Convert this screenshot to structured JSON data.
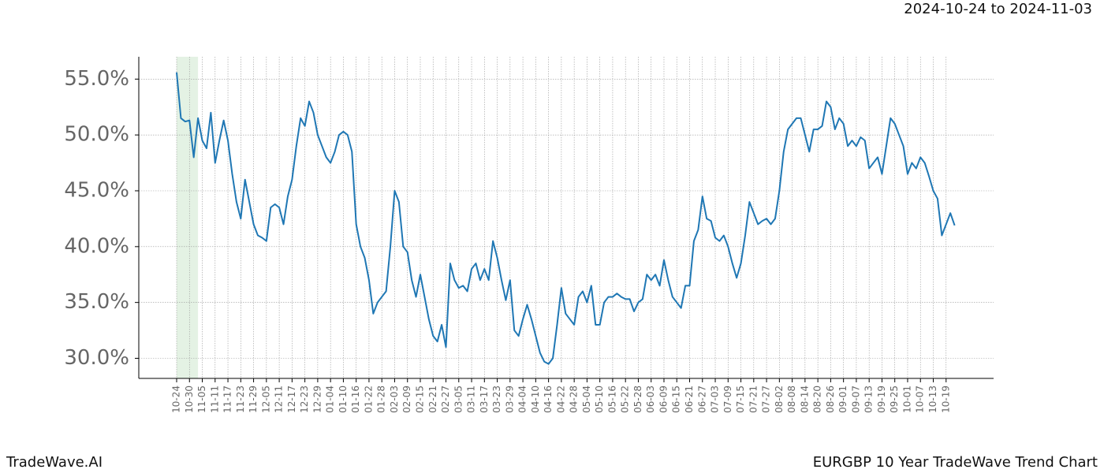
{
  "chart_data": {
    "type": "line",
    "title": "EURGBP 10 Year TradeWave Trend Chart",
    "subtitle": "2024-10-24 to 2024-11-03",
    "brand": "TradeWave.AI",
    "categories": [
      "10-24",
      null,
      null,
      "10-30",
      null,
      null,
      "11-05",
      null,
      null,
      "11-11",
      null,
      null,
      "11-17",
      null,
      null,
      "11-23",
      null,
      null,
      "11-29",
      null,
      null,
      "12-05",
      null,
      null,
      "12-11",
      null,
      null,
      "12-17",
      null,
      null,
      "12-23",
      null,
      null,
      "12-29",
      null,
      null,
      "01-04",
      null,
      null,
      "01-10",
      null,
      null,
      "01-16",
      null,
      null,
      "01-22",
      null,
      null,
      "01-28",
      null,
      null,
      "02-03",
      null,
      null,
      "02-09",
      null,
      null,
      "02-15",
      null,
      null,
      "02-21",
      null,
      null,
      "02-27",
      null,
      null,
      "03-05",
      null,
      null,
      "03-11",
      null,
      null,
      "03-17",
      null,
      null,
      "03-23",
      null,
      null,
      "03-29",
      null,
      null,
      "04-04",
      null,
      null,
      "04-10",
      null,
      null,
      "04-16",
      null,
      null,
      "04-22",
      null,
      null,
      "04-28",
      null,
      null,
      "05-04",
      null,
      null,
      "05-10",
      null,
      null,
      "05-16",
      null,
      null,
      "05-22",
      null,
      null,
      "05-28",
      null,
      null,
      "06-03",
      null,
      null,
      "06-09",
      null,
      null,
      "06-15",
      null,
      null,
      "06-21",
      null,
      null,
      "06-27",
      null,
      null,
      "07-03",
      null,
      null,
      "07-09",
      null,
      null,
      "07-15",
      null,
      null,
      "07-21",
      null,
      null,
      "07-27",
      null,
      null,
      "08-02",
      null,
      null,
      "08-08",
      null,
      null,
      "08-14",
      null,
      null,
      "08-20",
      null,
      null,
      "08-26",
      null,
      null,
      "09-01",
      null,
      null,
      "09-07",
      null,
      null,
      "09-13",
      null,
      null,
      "09-19",
      null,
      null,
      "09-25",
      null,
      null,
      "10-01",
      null,
      null,
      "10-07",
      null,
      null,
      "10-13",
      null,
      null,
      "10-19",
      null,
      null
    ],
    "series": [
      {
        "color": "#1f77b4",
        "values": [
          55.6,
          51.5,
          51.2,
          51.3,
          48,
          51.5,
          49.5,
          48.8,
          52,
          47.5,
          49.5,
          51.3,
          49.5,
          46.5,
          44,
          42.5,
          46,
          44,
          42,
          41,
          40.8,
          40.5,
          43.5,
          43.8,
          43.5,
          42,
          44.5,
          46,
          49,
          51.5,
          50.8,
          53,
          52,
          50,
          49,
          48,
          47.5,
          48.5,
          50,
          50.3,
          50,
          48.5,
          42,
          40,
          39,
          37,
          34,
          35,
          35.5,
          36,
          40,
          45,
          44,
          40,
          39.5,
          37,
          35.5,
          37.5,
          35.5,
          33.5,
          32,
          31.5,
          33,
          31,
          38.5,
          37,
          36.3,
          36.5,
          36,
          38,
          38.5,
          37,
          38,
          37,
          40.5,
          39,
          37,
          35.2,
          37,
          32.5,
          32,
          33.5,
          34.8,
          33.5,
          32,
          30.5,
          29.7,
          29.5,
          30,
          33,
          36.3,
          34,
          33.5,
          33,
          35.5,
          36,
          35,
          36.5,
          33,
          33,
          35,
          35.5,
          35.5,
          35.8,
          35.5,
          35.3,
          35.3,
          34.2,
          35,
          35.3,
          37.5,
          37,
          37.5,
          36.5,
          38.8,
          37,
          35.5,
          35,
          34.5,
          36.5,
          36.5,
          40.5,
          41.5,
          44.5,
          42.5,
          42.3,
          40.8,
          40.5,
          41,
          40,
          38.5,
          37.2,
          38.5,
          41,
          44,
          43,
          42,
          42.3,
          42.5,
          42,
          42.5,
          45,
          48.5,
          50.5,
          51,
          51.5,
          51.5,
          50,
          48.5,
          50.5,
          50.5,
          50.8,
          53,
          52.5,
          50.5,
          51.5,
          51,
          49,
          49.5,
          49,
          49.8,
          49.5,
          47,
          47.5,
          48,
          46.5,
          49,
          51.5,
          51,
          50,
          49,
          46.5,
          47.5,
          47,
          48,
          47.5,
          46.3,
          45,
          44.3,
          41,
          42,
          43,
          41.9
        ]
      }
    ],
    "ylim": [
      28.2,
      57
    ],
    "yticks": [
      {
        "value": 30,
        "label": "30.0%"
      },
      {
        "value": 35,
        "label": "35.0%"
      },
      {
        "value": 40,
        "label": "40.0%"
      },
      {
        "value": 45,
        "label": "45.0%"
      },
      {
        "value": 50,
        "label": "50.0%"
      },
      {
        "value": 55,
        "label": "55.0%"
      }
    ],
    "grid": true,
    "highlight": [
      0,
      5
    ],
    "highlight_color": "#d8ecd8"
  }
}
